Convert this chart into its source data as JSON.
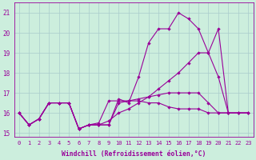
{
  "xlabel": "Windchill (Refroidissement éolien,°C)",
  "background_color": "#cceedd",
  "grid_color": "#aacccc",
  "line_color": "#990099",
  "xlim_min": -0.5,
  "xlim_max": 23.5,
  "ylim_min": 14.8,
  "ylim_max": 21.5,
  "yticks": [
    15,
    16,
    17,
    18,
    19,
    20,
    21
  ],
  "xticks": [
    0,
    1,
    2,
    3,
    4,
    5,
    6,
    7,
    8,
    9,
    10,
    11,
    12,
    13,
    14,
    15,
    16,
    17,
    18,
    19,
    20,
    21,
    22,
    23
  ],
  "series": [
    {
      "x": [
        0,
        1,
        2,
        3,
        4,
        5,
        6,
        7,
        8,
        9,
        10,
        11,
        12,
        13,
        14,
        15,
        16,
        17,
        18,
        19,
        20,
        21
      ],
      "y": [
        16.0,
        15.4,
        15.7,
        16.5,
        16.5,
        16.5,
        15.2,
        15.4,
        15.4,
        15.4,
        16.7,
        16.5,
        17.8,
        19.5,
        20.2,
        20.2,
        21.0,
        20.7,
        20.2,
        19.0,
        17.8,
        16.0
      ]
    },
    {
      "x": [
        0,
        1,
        2,
        3,
        4,
        5,
        6,
        7,
        8,
        9,
        10,
        11,
        12,
        13,
        14,
        15,
        16,
        17,
        18,
        19,
        20,
        21,
        22,
        23
      ],
      "y": [
        16.0,
        15.4,
        15.7,
        16.5,
        16.5,
        16.5,
        15.2,
        15.4,
        15.4,
        15.6,
        16.0,
        16.2,
        16.5,
        16.8,
        17.2,
        17.6,
        18.0,
        18.5,
        19.0,
        19.0,
        20.2,
        16.0,
        16.0,
        16.0
      ]
    },
    {
      "x": [
        0,
        1,
        2,
        3,
        4,
        5,
        6,
        7,
        8,
        9,
        10,
        11,
        12,
        13,
        14,
        15,
        16,
        17,
        18,
        19,
        20,
        21,
        22,
        23
      ],
      "y": [
        16.0,
        15.4,
        15.7,
        16.5,
        16.5,
        16.5,
        15.2,
        15.4,
        15.5,
        16.6,
        16.6,
        16.6,
        16.6,
        16.5,
        16.5,
        16.3,
        16.2,
        16.2,
        16.2,
        16.0,
        16.0,
        16.0,
        16.0,
        16.0
      ]
    },
    {
      "x": [
        0,
        1,
        2,
        3,
        4,
        5,
        6,
        7,
        8,
        9,
        10,
        11,
        12,
        13,
        14,
        15,
        16,
        17,
        18,
        19,
        20,
        21,
        22,
        23
      ],
      "y": [
        16.0,
        15.4,
        15.7,
        16.5,
        16.5,
        16.5,
        15.2,
        15.4,
        15.4,
        15.4,
        16.5,
        16.6,
        16.7,
        16.8,
        16.9,
        17.0,
        17.0,
        17.0,
        17.0,
        16.5,
        16.0,
        16.0,
        16.0,
        16.0
      ]
    }
  ]
}
